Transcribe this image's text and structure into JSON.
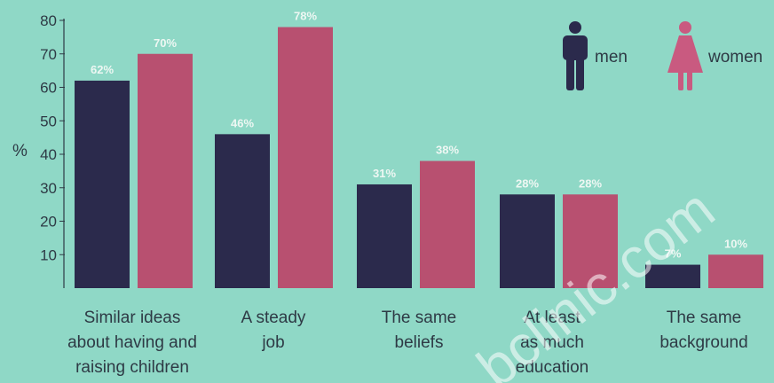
{
  "chart_data": {
    "type": "bar",
    "title": "",
    "xlabel": "",
    "ylabel": "%",
    "ylim": [
      0,
      80
    ],
    "yticks": [
      10,
      20,
      30,
      40,
      50,
      60,
      70,
      80
    ],
    "categories": [
      [
        "Similar ideas",
        "about having and",
        "raising children"
      ],
      [
        "A steady",
        "job"
      ],
      [
        "The same",
        "beliefs"
      ],
      [
        "At least",
        "as much",
        "education"
      ],
      [
        "The same",
        "background"
      ]
    ],
    "series": [
      {
        "name": "men",
        "values": [
          62,
          46,
          31,
          28,
          7
        ],
        "labels": [
          "62%",
          "46%",
          "31%",
          "28%",
          "7%"
        ],
        "color": "#2b2a4c"
      },
      {
        "name": "women",
        "values": [
          70,
          78,
          38,
          28,
          10
        ],
        "labels": [
          "70%",
          "78%",
          "38%",
          "28%",
          "10%"
        ],
        "color": "#b85070"
      }
    ],
    "legend": "top-right",
    "grid": false
  },
  "watermark": "bclinic.com"
}
